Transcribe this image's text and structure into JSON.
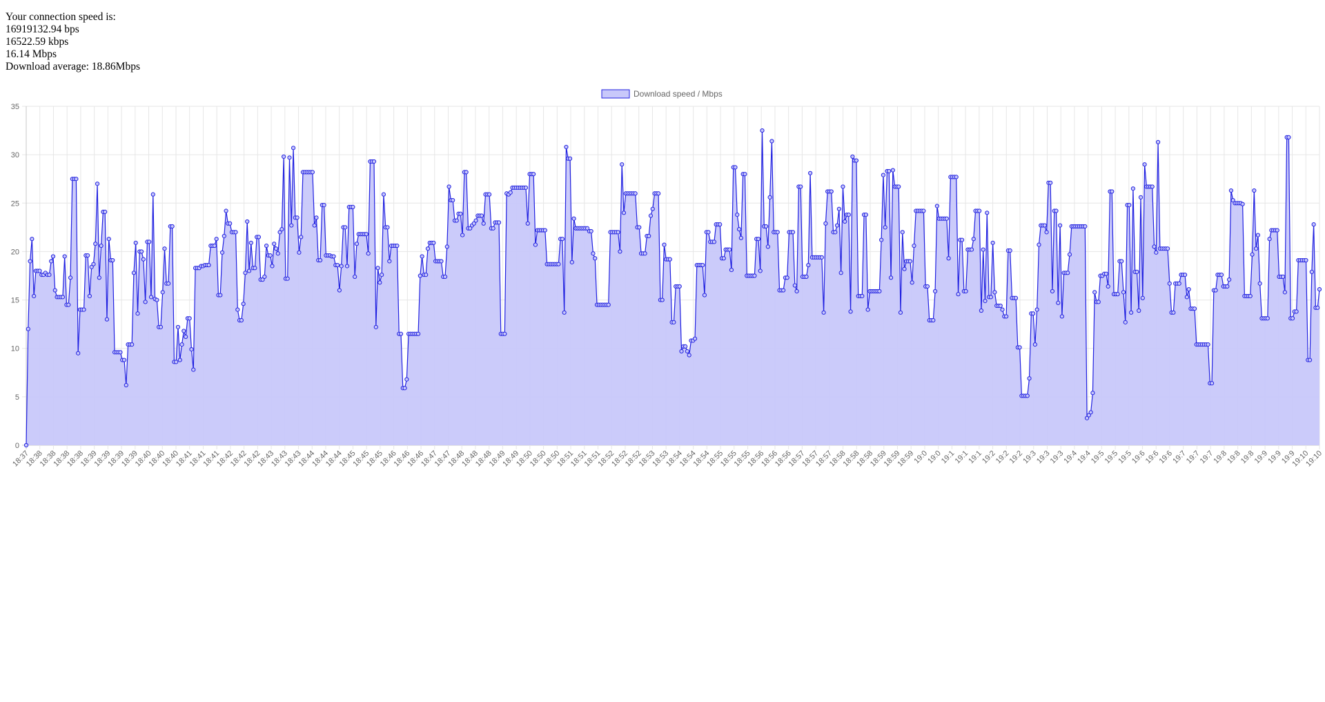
{
  "speed": {
    "heading": "Your connection speed is:",
    "bps": "16919132.94 bps",
    "kbps": "16522.59 kbps",
    "mbps": "16.14 Mbps",
    "average": "Download average: 18.86Mbps"
  },
  "colors": {
    "line": "#2020e0",
    "fill": "#c8c8fa",
    "grid": "#e6e6e6",
    "axis": "#c8c8c8",
    "text": "#666666"
  },
  "chart_data": {
    "type": "area",
    "legend": {
      "position": "top-center",
      "label": "Download speed / Mbps"
    },
    "ylim": [
      0,
      35
    ],
    "yticks": [
      0,
      5,
      10,
      15,
      20,
      25,
      30,
      35
    ],
    "grid": true,
    "tick_labels": [
      "18:37",
      "18:38",
      "18:38",
      "18:38",
      "18:38",
      "18:39",
      "18:39",
      "18:39",
      "18:39",
      "18:40",
      "18:40",
      "18:40",
      "18:41",
      "18:41",
      "18:41",
      "18:42",
      "18:42",
      "18:42",
      "18:43",
      "18:43",
      "18:43",
      "18:44",
      "18:44",
      "18:44",
      "18:45",
      "18:45",
      "18:45",
      "18:46",
      "18:46",
      "18:46",
      "18:47",
      "18:47",
      "18:48",
      "18:48",
      "18:48",
      "18:49",
      "18:49",
      "18:50",
      "18:50",
      "18:50",
      "18:51",
      "18:51",
      "18:51",
      "18:52",
      "18:52",
      "18:52",
      "18:53",
      "18:53",
      "18:54",
      "18:54",
      "18:54",
      "18:55",
      "18:55",
      "18:55",
      "18:56",
      "18:56",
      "18:56",
      "18:57",
      "18:57",
      "18:57",
      "18:58",
      "18:58",
      "18:58",
      "18:59",
      "18:59",
      "18:59",
      "19:0",
      "19:0",
      "19:1",
      "19:1",
      "19:1",
      "19:2",
      "19:2",
      "19:2",
      "19:3",
      "19:3",
      "19:3",
      "19:4",
      "19:4",
      "19:5",
      "19:5",
      "19:5",
      "19:6",
      "19:6",
      "19:6",
      "19:7",
      "19:7",
      "19:7",
      "19:8",
      "19:8",
      "19:8",
      "19:9",
      "19:9",
      "19:9",
      "19:10",
      "19:10"
    ],
    "series": [
      {
        "name": "Download speed / Mbps",
        "values": [
          0,
          12,
          19,
          21.3,
          15.4,
          18,
          18,
          18,
          17.6,
          17.6,
          17.8,
          17.6,
          17.6,
          19,
          19.5,
          16,
          15.3,
          15.3,
          15.3,
          15.3,
          19.5,
          14.5,
          14.5,
          17.3,
          27.5,
          27.5,
          27.5,
          9.5,
          14,
          14,
          14,
          19.6,
          19.6,
          15.4,
          18.4,
          18.7,
          20.8,
          27,
          17.3,
          20.6,
          24.1,
          24.1,
          13,
          21.3,
          19.1,
          19.1,
          9.6,
          9.6,
          9.6,
          9.6,
          8.8,
          8.8,
          6.2,
          10.4,
          10.4,
          10.4,
          17.8,
          20.9,
          13.6,
          20,
          20,
          19.2,
          14.8,
          21,
          21,
          15.3,
          25.9,
          15.1,
          15,
          12.2,
          12.2,
          15.8,
          20.3,
          16.7,
          16.7,
          22.6,
          22.6,
          8.6,
          8.6,
          12.2,
          8.8,
          10.4,
          11.8,
          11.2,
          13.1,
          13.1,
          9.9,
          7.8,
          18.3,
          18.3,
          18.3,
          18.5,
          18.5,
          18.6,
          18.6,
          18.6,
          20.6,
          20.6,
          20.6,
          21.3,
          15.5,
          15.5,
          19.9,
          21.6,
          24.2,
          22.9,
          22.9,
          22,
          22,
          22,
          14,
          12.9,
          12.9,
          14.6,
          17.8,
          23.1,
          18,
          20.9,
          18.3,
          18.3,
          21.5,
          21.5,
          17.1,
          17.1,
          17.4,
          20.6,
          19.6,
          19.6,
          18.5,
          20.8,
          20.3,
          19.8,
          22,
          22.3,
          29.8,
          17.2,
          17.2,
          29.7,
          22.7,
          30.7,
          23.5,
          23.5,
          19.9,
          21.5,
          28.2,
          28.2,
          28.2,
          28.2,
          28.2,
          28.2,
          22.7,
          23.5,
          19.1,
          19.1,
          24.8,
          24.8,
          19.6,
          19.6,
          19.6,
          19.5,
          19.5,
          18.6,
          18.6,
          16,
          18.5,
          22.5,
          22.5,
          18.5,
          24.6,
          24.6,
          24.6,
          17.4,
          20.8,
          21.8,
          21.8,
          21.8,
          21.8,
          21.8,
          19.8,
          29.3,
          29.3,
          29.3,
          12.2,
          18.3,
          16.8,
          17.6,
          25.9,
          22.5,
          22.5,
          19,
          20.6,
          20.6,
          20.6,
          20.6,
          11.5,
          11.5,
          5.9,
          5.9,
          6.8,
          11.5,
          11.5,
          11.5,
          11.5,
          11.5,
          11.5,
          17.5,
          19.5,
          17.6,
          17.6,
          20.3,
          20.9,
          20.9,
          20.9,
          19,
          19,
          19,
          19,
          17.4,
          17.4,
          20.5,
          26.7,
          25.3,
          25.3,
          23.2,
          23.2,
          23.9,
          23.9,
          21.7,
          28.2,
          28.2,
          22.4,
          22.4,
          22.7,
          22.9,
          23.2,
          23.7,
          23.7,
          23.7,
          22.9,
          25.9,
          25.9,
          25.9,
          22.4,
          22.4,
          23,
          23,
          23,
          11.5,
          11.5,
          11.5,
          26,
          25.9,
          26.1,
          26.6,
          26.6,
          26.6,
          26.6,
          26.6,
          26.6,
          26.6,
          26.6,
          22.9,
          28,
          28,
          28,
          20.7,
          22.2,
          22.2,
          22.2,
          22.2,
          22.2,
          18.7,
          18.7,
          18.7,
          18.7,
          18.7,
          18.7,
          18.7,
          21.3,
          21.3,
          13.7,
          30.8,
          29.6,
          29.6,
          18.9,
          23.4,
          22.4,
          22.4,
          22.4,
          22.4,
          22.4,
          22.4,
          22.4,
          22.1,
          22.1,
          19.8,
          19.3,
          14.5,
          14.5,
          14.5,
          14.5,
          14.5,
          14.5,
          14.5,
          22,
          22,
          22,
          22,
          22,
          20,
          29,
          24,
          26,
          26,
          26,
          26,
          26,
          26,
          22.5,
          22.5,
          19.8,
          19.8,
          19.8,
          21.6,
          21.6,
          23.7,
          24.4,
          26,
          26,
          26,
          15,
          15,
          20.7,
          19.2,
          19.2,
          19.2,
          12.7,
          12.7,
          16.4,
          16.4,
          16.4,
          9.7,
          10.2,
          10.2,
          9.7,
          9.3,
          10.8,
          10.8,
          11,
          18.6,
          18.6,
          18.6,
          18.6,
          15.5,
          22,
          22,
          21,
          21,
          21,
          22.8,
          22.8,
          22.8,
          19.3,
          19.3,
          20.2,
          20.2,
          20.2,
          18.1,
          28.7,
          28.7,
          23.8,
          22.3,
          21.4,
          28,
          28,
          17.5,
          17.5,
          17.5,
          17.5,
          17.5,
          21.3,
          21.3,
          18,
          32.5,
          22.6,
          22.6,
          20.5,
          25.6,
          31.4,
          22,
          22,
          22,
          16,
          16,
          16,
          17.3,
          17.3,
          22,
          22,
          22,
          16.5,
          15.9,
          26.7,
          26.7,
          17.4,
          17.4,
          17.4,
          18.6,
          28.1,
          19.4,
          19.4,
          19.4,
          19.4,
          19.4,
          19.4,
          13.7,
          22.9,
          26.2,
          26.2,
          26.2,
          22,
          22,
          22.7,
          24.4,
          17.8,
          26.7,
          23.1,
          23.8,
          23.8,
          13.8,
          29.8,
          29.4,
          29.4,
          15.4,
          15.4,
          15.4,
          23.8,
          23.8,
          14,
          15.9,
          15.9,
          15.9,
          15.9,
          15.9,
          15.9,
          21.2,
          27.9,
          22.5,
          28.3,
          28.3,
          17.3,
          28.4,
          26.7,
          26.7,
          26.7,
          13.7,
          22,
          18.2,
          19,
          19,
          19,
          16.8,
          20.6,
          24.2,
          24.2,
          24.2,
          24.2,
          24.2,
          16.4,
          16.4,
          12.9,
          12.9,
          12.9,
          15.9,
          24.7,
          23.4,
          23.4,
          23.4,
          23.4,
          23.4,
          19.3,
          27.7,
          27.7,
          27.7,
          27.7,
          15.6,
          21.2,
          21.2,
          15.9,
          15.9,
          20.2,
          20.2,
          20.2,
          21.3,
          24.2,
          24.2,
          24.2,
          13.9,
          20.2,
          14.9,
          24,
          15.3,
          15.3,
          20.9,
          15.8,
          14.4,
          14.4,
          14.4,
          14,
          13.3,
          13.3,
          20.1,
          20.1,
          15.2,
          15.2,
          15.2,
          10.1,
          10.1,
          5.1,
          5.1,
          5.1,
          5.1,
          6.9,
          13.6,
          13.6,
          10.4,
          14,
          20.7,
          22.7,
          22.7,
          22.7,
          22,
          27.1,
          27.1,
          15.9,
          24.2,
          24.2,
          14.7,
          22.7,
          13.3,
          17.8,
          17.8,
          17.8,
          19.7,
          22.6,
          22.6,
          22.6,
          22.6,
          22.6,
          22.6,
          22.6,
          22.6,
          2.8,
          3.1,
          3.4,
          5.4,
          15.8,
          14.8,
          14.8,
          17.5,
          17.5,
          17.7,
          17.7,
          16.4,
          26.2,
          26.2,
          15.6,
          15.6,
          15.6,
          19,
          19,
          15.8,
          12.7,
          24.8,
          24.8,
          13.7,
          26.5,
          17.9,
          17.9,
          13.9,
          25.6,
          15.2,
          29,
          26.7,
          26.7,
          26.7,
          26.7,
          20.5,
          19.9,
          31.3,
          20.3,
          20.3,
          20.3,
          20.3,
          20.3,
          16.7,
          13.7,
          13.7,
          16.7,
          16.7,
          16.7,
          17.6,
          17.6,
          17.6,
          15.3,
          16.1,
          14.1,
          14.1,
          14.1,
          10.4,
          10.4,
          10.4,
          10.4,
          10.4,
          10.4,
          10.4,
          6.4,
          6.4,
          16,
          16,
          17.6,
          17.6,
          17.6,
          16.4,
          16.4,
          16.4,
          17.1,
          26.3,
          25.3,
          25,
          25,
          25,
          25,
          24.9,
          15.4,
          15.4,
          15.4,
          15.4,
          19.7,
          26.3,
          20.3,
          21.7,
          16.7,
          13.1,
          13.1,
          13.1,
          13.1,
          21.3,
          22.2,
          22.2,
          22.2,
          22.2,
          17.4,
          17.4,
          17.4,
          15.8,
          31.8,
          31.8,
          13.1,
          13.1,
          13.8,
          13.8,
          19.1,
          19.1,
          19.1,
          19.1,
          19.1,
          8.8,
          8.8,
          17.9,
          22.8,
          14.2,
          14.2,
          16.1
        ]
      }
    ]
  }
}
